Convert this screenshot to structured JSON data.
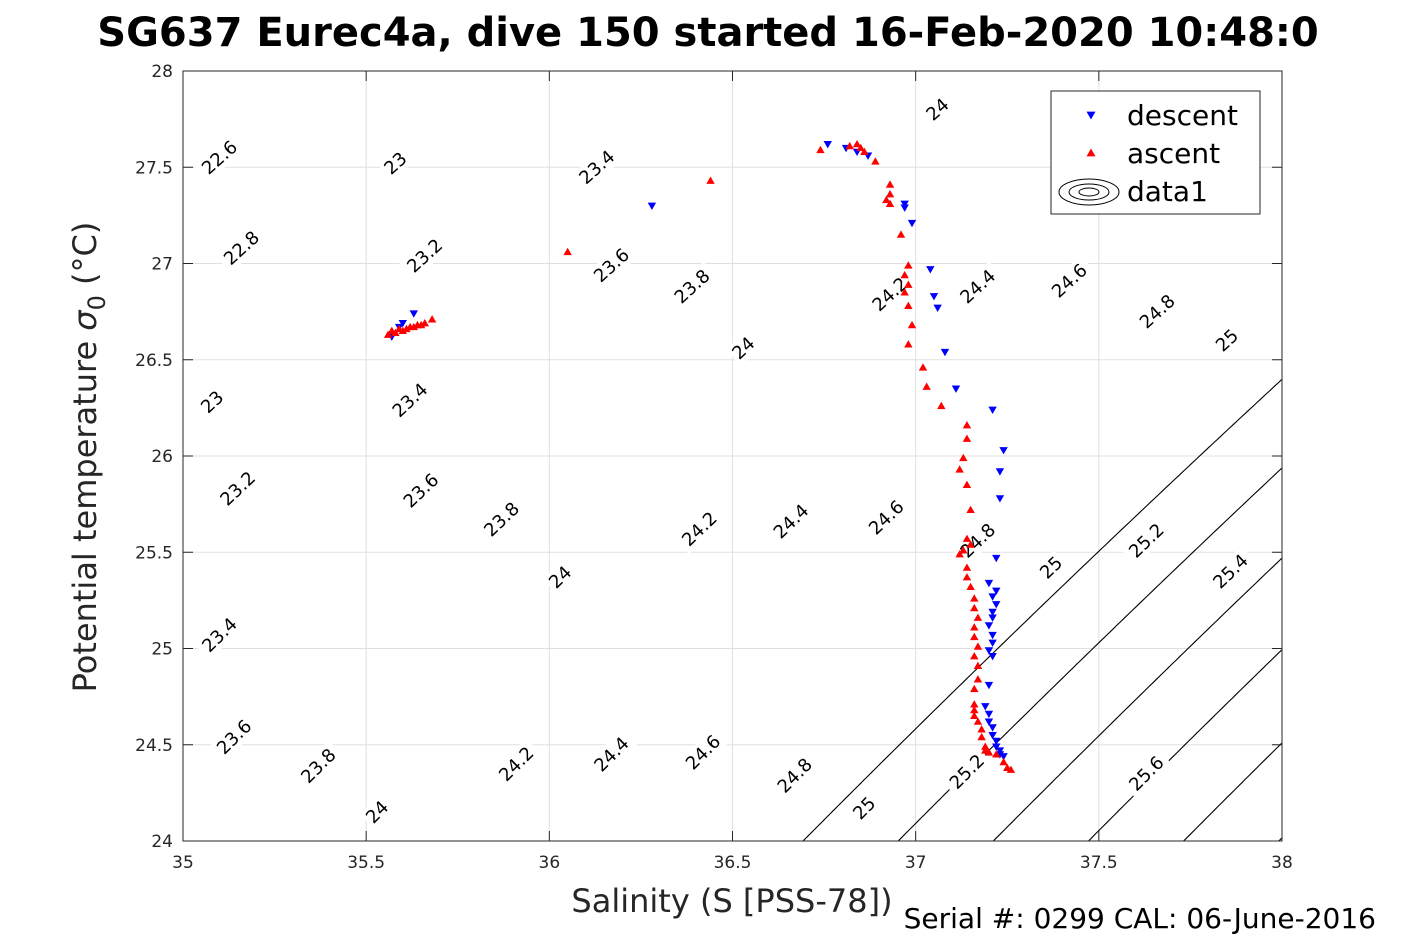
{
  "chart_data": {
    "type": "scatter",
    "title": "SG637 Eurec4a, dive 150 started 16-Feb-2020 10:48:0",
    "xlabel": "Salinity (S [PSS-78])",
    "ylabel_main": "Potential temperature ",
    "ylabel_sigma": "σ",
    "ylabel_sub": "0",
    "ylabel_unit": " (°C)",
    "xlim": [
      35,
      38
    ],
    "ylim": [
      24,
      28
    ],
    "xticks": [
      "35",
      "35.5",
      "36",
      "36.5",
      "37",
      "37.5",
      "38"
    ],
    "yticks": [
      "24",
      "24.5",
      "25",
      "25.5",
      "26",
      "26.5",
      "27",
      "27.5",
      "28"
    ],
    "grid": true,
    "legend_position": "top-right",
    "footer": "Serial #: 0299 CAL: 06-June-2016",
    "colors": {
      "descent": "#0000ff",
      "ascent": "#ff0000",
      "contour": "#000000",
      "grid": "#e0e0e0"
    },
    "series": [
      {
        "name": "descent",
        "marker": "triangle-down",
        "points": [
          [
            35.57,
            26.62
          ],
          [
            35.59,
            26.67
          ],
          [
            35.6,
            26.69
          ],
          [
            35.63,
            26.74
          ],
          [
            36.28,
            27.3
          ],
          [
            36.76,
            27.62
          ],
          [
            36.81,
            27.6
          ],
          [
            36.84,
            27.58
          ],
          [
            36.87,
            27.56
          ],
          [
            36.97,
            27.31
          ],
          [
            36.97,
            27.29
          ],
          [
            36.99,
            27.21
          ],
          [
            37.04,
            26.97
          ],
          [
            37.05,
            26.83
          ],
          [
            37.06,
            26.77
          ],
          [
            37.08,
            26.54
          ],
          [
            37.11,
            26.35
          ],
          [
            37.21,
            26.24
          ],
          [
            37.24,
            26.03
          ],
          [
            37.23,
            25.92
          ],
          [
            37.23,
            25.78
          ],
          [
            37.22,
            25.47
          ],
          [
            37.2,
            25.34
          ],
          [
            37.22,
            25.3
          ],
          [
            37.21,
            25.27
          ],
          [
            37.22,
            25.23
          ],
          [
            37.21,
            25.19
          ],
          [
            37.21,
            25.16
          ],
          [
            37.2,
            25.12
          ],
          [
            37.21,
            25.07
          ],
          [
            37.21,
            25.03
          ],
          [
            37.2,
            24.99
          ],
          [
            37.21,
            24.96
          ],
          [
            37.2,
            24.81
          ],
          [
            37.19,
            24.7
          ],
          [
            37.2,
            24.66
          ],
          [
            37.2,
            24.62
          ],
          [
            37.21,
            24.59
          ],
          [
            37.21,
            24.55
          ],
          [
            37.22,
            24.52
          ],
          [
            37.22,
            24.49
          ],
          [
            37.23,
            24.47
          ],
          [
            37.23,
            24.45
          ],
          [
            37.24,
            24.44
          ]
        ]
      },
      {
        "name": "ascent",
        "marker": "triangle-up",
        "points": [
          [
            35.56,
            26.63
          ],
          [
            35.57,
            26.65
          ],
          [
            35.58,
            26.64
          ],
          [
            35.59,
            26.66
          ],
          [
            35.6,
            26.65
          ],
          [
            35.61,
            26.66
          ],
          [
            35.62,
            26.67
          ],
          [
            35.63,
            26.67
          ],
          [
            35.64,
            26.68
          ],
          [
            35.65,
            26.68
          ],
          [
            35.66,
            26.69
          ],
          [
            35.68,
            26.71
          ],
          [
            36.05,
            27.06
          ],
          [
            36.44,
            27.43
          ],
          [
            36.74,
            27.59
          ],
          [
            36.82,
            27.61
          ],
          [
            36.84,
            27.62
          ],
          [
            36.85,
            27.6
          ],
          [
            36.86,
            27.58
          ],
          [
            36.89,
            27.53
          ],
          [
            36.93,
            27.41
          ],
          [
            36.93,
            27.36
          ],
          [
            36.92,
            27.33
          ],
          [
            36.93,
            27.31
          ],
          [
            36.96,
            27.15
          ],
          [
            36.98,
            26.99
          ],
          [
            36.97,
            26.94
          ],
          [
            36.98,
            26.89
          ],
          [
            36.97,
            26.85
          ],
          [
            36.98,
            26.78
          ],
          [
            36.99,
            26.68
          ],
          [
            36.98,
            26.58
          ],
          [
            37.02,
            26.46
          ],
          [
            37.03,
            26.36
          ],
          [
            37.07,
            26.26
          ],
          [
            37.14,
            26.16
          ],
          [
            37.14,
            26.09
          ],
          [
            37.13,
            25.99
          ],
          [
            37.12,
            25.93
          ],
          [
            37.14,
            25.85
          ],
          [
            37.15,
            25.72
          ],
          [
            37.14,
            25.57
          ],
          [
            37.15,
            25.54
          ],
          [
            37.13,
            25.51
          ],
          [
            37.12,
            25.49
          ],
          [
            37.14,
            25.42
          ],
          [
            37.14,
            25.37
          ],
          [
            37.15,
            25.32
          ],
          [
            37.16,
            25.26
          ],
          [
            37.16,
            25.21
          ],
          [
            37.17,
            25.16
          ],
          [
            37.16,
            25.11
          ],
          [
            37.16,
            25.06
          ],
          [
            37.17,
            25.01
          ],
          [
            37.16,
            24.96
          ],
          [
            37.17,
            24.91
          ],
          [
            37.17,
            24.84
          ],
          [
            37.16,
            24.79
          ],
          [
            37.16,
            24.71
          ],
          [
            37.16,
            24.68
          ],
          [
            37.16,
            24.65
          ],
          [
            37.17,
            24.62
          ],
          [
            37.18,
            24.58
          ],
          [
            37.18,
            24.54
          ],
          [
            37.19,
            24.49
          ],
          [
            37.19,
            24.47
          ],
          [
            37.2,
            24.46
          ],
          [
            37.22,
            24.45
          ],
          [
            37.24,
            24.41
          ],
          [
            37.25,
            24.38
          ],
          [
            37.26,
            24.37
          ]
        ]
      },
      {
        "name": "data1",
        "marker": "contour",
        "levels": [
          "22.6",
          "22.8",
          "23",
          "23.2",
          "23.4",
          "23.6",
          "23.8",
          "24",
          "24.2",
          "24.4",
          "24.6",
          "24.8",
          "25",
          "25.2",
          "25.4",
          "25.6"
        ],
        "labels": [
          {
            "text": "22.6",
            "s": 35.1,
            "t": 27.55
          },
          {
            "text": "22.8",
            "s": 35.16,
            "t": 27.08
          },
          {
            "text": "23",
            "s": 35.58,
            "t": 27.52
          },
          {
            "text": "23",
            "s": 35.08,
            "t": 26.28
          },
          {
            "text": "23.2",
            "s": 35.66,
            "t": 27.04
          },
          {
            "text": "23.2",
            "s": 35.15,
            "t": 25.83
          },
          {
            "text": "23.4",
            "s": 36.13,
            "t": 27.5
          },
          {
            "text": "23.4",
            "s": 35.62,
            "t": 26.29
          },
          {
            "text": "23.4",
            "s": 35.1,
            "t": 25.07
          },
          {
            "text": "23.6",
            "s": 36.17,
            "t": 26.99
          },
          {
            "text": "23.6",
            "s": 35.65,
            "t": 25.82
          },
          {
            "text": "23.6",
            "s": 35.14,
            "t": 24.54
          },
          {
            "text": "23.8",
            "s": 36.39,
            "t": 26.88
          },
          {
            "text": "23.8",
            "s": 35.87,
            "t": 25.67
          },
          {
            "text": "23.8",
            "s": 35.37,
            "t": 24.39
          },
          {
            "text": "24",
            "s": 37.06,
            "t": 27.8
          },
          {
            "text": "24",
            "s": 36.53,
            "t": 26.56
          },
          {
            "text": "24",
            "s": 36.03,
            "t": 25.37
          },
          {
            "text": "24",
            "s": 35.53,
            "t": 24.15
          },
          {
            "text": "24.2",
            "s": 36.93,
            "t": 26.84
          },
          {
            "text": "24.2",
            "s": 36.41,
            "t": 25.62
          },
          {
            "text": "24.2",
            "s": 35.91,
            "t": 24.4
          },
          {
            "text": "24.4",
            "s": 37.17,
            "t": 26.88
          },
          {
            "text": "24.4",
            "s": 36.66,
            "t": 25.66
          },
          {
            "text": "24.4",
            "s": 36.17,
            "t": 24.45
          },
          {
            "text": "24.6",
            "s": 37.42,
            "t": 26.91
          },
          {
            "text": "24.6",
            "s": 36.92,
            "t": 25.68
          },
          {
            "text": "24.6",
            "s": 36.42,
            "t": 24.46
          },
          {
            "text": "24.8",
            "s": 37.66,
            "t": 26.75
          },
          {
            "text": "24.8",
            "s": 37.17,
            "t": 25.56
          },
          {
            "text": "24.8",
            "s": 36.67,
            "t": 24.34
          },
          {
            "text": "25",
            "s": 37.85,
            "t": 26.6
          },
          {
            "text": "25",
            "s": 37.37,
            "t": 25.42
          },
          {
            "text": "25",
            "s": 36.86,
            "t": 24.17
          },
          {
            "text": "25.2",
            "s": 37.63,
            "t": 25.56
          },
          {
            "text": "25.2",
            "s": 37.14,
            "t": 24.36
          },
          {
            "text": "25.4",
            "s": 37.86,
            "t": 25.4
          },
          {
            "text": "25.6",
            "s": 37.63,
            "t": 24.35
          }
        ]
      }
    ]
  }
}
